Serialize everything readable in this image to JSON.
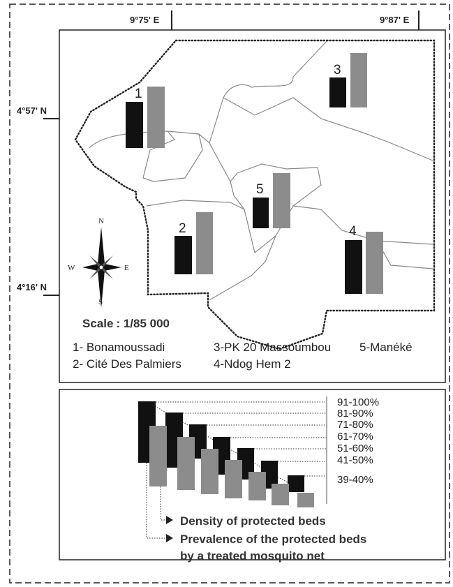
{
  "coordinates": {
    "top": [
      "9°75' E",
      "9°87' E"
    ],
    "left": [
      "4°57' N",
      "4°16' N"
    ]
  },
  "sites": [
    "1",
    "2",
    "3",
    "4",
    "5"
  ],
  "compass": {
    "north": "N",
    "south": "S",
    "east": "E",
    "west": "W"
  },
  "scale": {
    "label": "Scale",
    "value": ": 1/85 000"
  },
  "site_legend": [
    "1- Bonamoussadi",
    "2- Cité Des Palmiers",
    "3-PK 20 Massoumbou",
    "4-Ndog Hem 2",
    "5-Manéké"
  ],
  "legend": {
    "classes": [
      "91-100%",
      "81-90%",
      "71-80%",
      "61-70%",
      "51-60%",
      "41-50%",
      "39-40%"
    ],
    "density": "Density of protected beds",
    "prevalence": [
      "Prevalence of the protected beds",
      "by a treated mosquito net"
    ]
  }
}
